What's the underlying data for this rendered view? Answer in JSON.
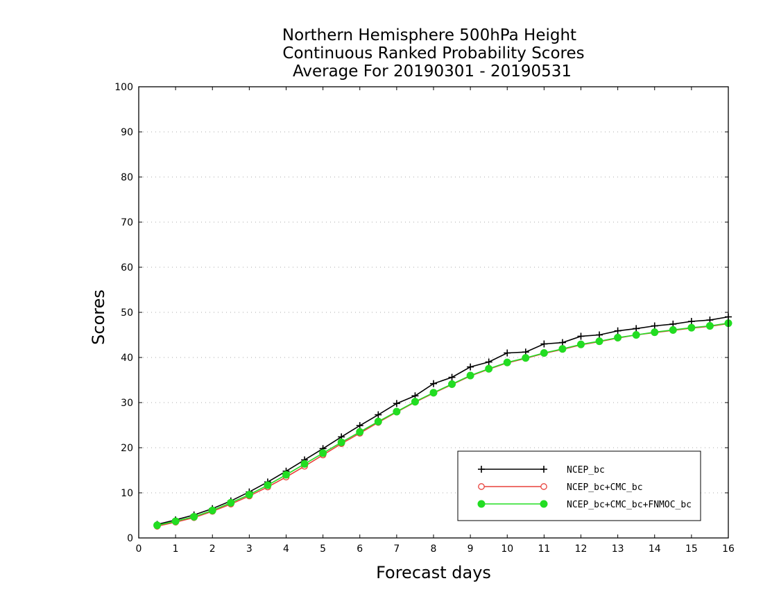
{
  "chart_data": {
    "type": "line",
    "title": [
      "Northern Hemisphere 500hPa Height",
      "Continuous Ranked Probability Scores",
      "Average For 20190301 - 20190531"
    ],
    "xlabel": "Forecast days",
    "ylabel": "Scores",
    "xlim": [
      0,
      16
    ],
    "ylim": [
      0,
      100
    ],
    "xticks": [
      0,
      1,
      2,
      3,
      4,
      5,
      6,
      7,
      8,
      9,
      10,
      11,
      12,
      13,
      14,
      15,
      16
    ],
    "yticks": [
      0,
      10,
      20,
      30,
      40,
      50,
      60,
      70,
      80,
      90,
      100
    ],
    "grid": "horizontal dotted",
    "legend_position": "bottom-right",
    "x": [
      0.5,
      1,
      1.5,
      2,
      2.5,
      3,
      3.5,
      4,
      4.5,
      5,
      5.5,
      6,
      6.5,
      7,
      7.5,
      8,
      8.5,
      9,
      9.5,
      10,
      10.5,
      11,
      11.5,
      12,
      12.5,
      13,
      13.5,
      14,
      14.5,
      15,
      15.5,
      16
    ],
    "series": [
      {
        "name": "NCEP_bc",
        "color": "#000000",
        "marker": "plus",
        "values": [
          3.0,
          4.0,
          5.1,
          6.5,
          8.2,
          10.2,
          12.4,
          14.8,
          17.3,
          19.8,
          22.4,
          24.9,
          27.3,
          29.8,
          31.5,
          34.2,
          35.6,
          37.9,
          39.0,
          41.0,
          41.2,
          43.0,
          43.3,
          44.7,
          45.0,
          45.9,
          46.4,
          47.0,
          47.4,
          48.0,
          48.3,
          49.0
        ]
      },
      {
        "name": "NCEP_bc+CMC_bc",
        "color": "#e8403a",
        "marker": "open-circle",
        "values": [
          2.6,
          3.5,
          4.5,
          5.9,
          7.5,
          9.3,
          11.3,
          13.5,
          15.9,
          18.4,
          20.9,
          23.2,
          25.6,
          27.9,
          30.1,
          32.1,
          34.0,
          35.9,
          37.4,
          38.8,
          39.8,
          40.9,
          41.8,
          42.8,
          43.5,
          44.3,
          45.0,
          45.5,
          46.0,
          46.5,
          46.9,
          47.5
        ]
      },
      {
        "name": "NCEP_bc+CMC_bc+FNMOC_bc",
        "color": "#22dd22",
        "marker": "filled-circle",
        "values": [
          2.8,
          3.7,
          4.7,
          6.1,
          7.8,
          9.6,
          11.7,
          14.0,
          16.4,
          18.8,
          21.2,
          23.5,
          25.8,
          28.0,
          30.2,
          32.2,
          34.1,
          36.0,
          37.5,
          38.9,
          39.9,
          41.0,
          41.9,
          42.9,
          43.6,
          44.4,
          45.0,
          45.6,
          46.1,
          46.6,
          47.0,
          47.6
        ]
      }
    ]
  }
}
